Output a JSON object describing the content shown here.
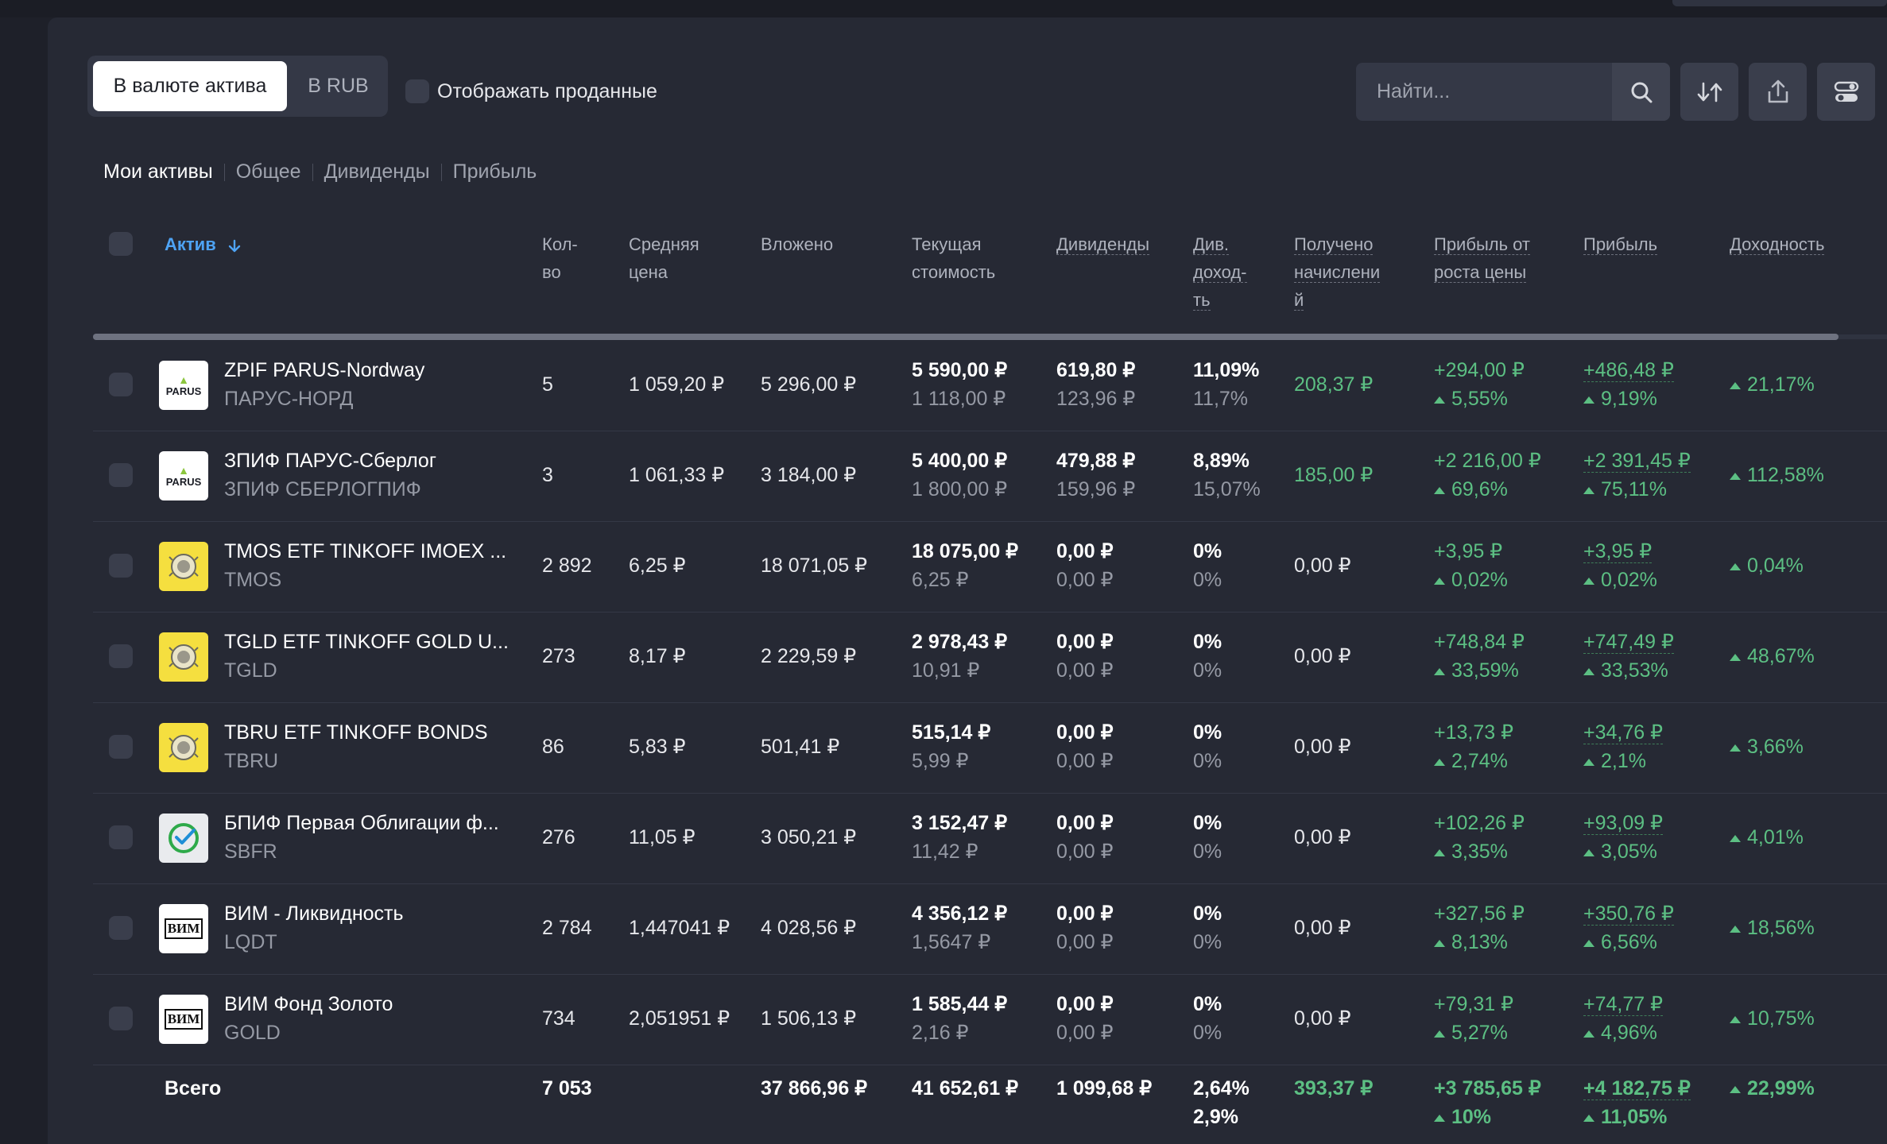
{
  "toolbar": {
    "seg_asset_currency": "В валюте актива",
    "seg_rub": "В RUB",
    "show_sold": "Отображать проданные",
    "search_placeholder": "Найти..."
  },
  "view_tabs": [
    "Мои активы",
    "Общее",
    "Дивиденды",
    "Прибыль"
  ],
  "columns": {
    "asset": "Актив",
    "qty": [
      "Кол-",
      "во"
    ],
    "avg_price": [
      "Средняя",
      "цена"
    ],
    "invested": "Вложено",
    "current": [
      "Текущая",
      "стоимость"
    ],
    "dividends": "Дивиденды",
    "div_yield": [
      "Див.",
      "доход-",
      "ть"
    ],
    "received": [
      "Получено",
      "начислени",
      "й"
    ],
    "price_profit": [
      "Прибыль от",
      "роста цены"
    ],
    "profit": "Прибыль",
    "return": "Доходность"
  },
  "rows": [
    {
      "logo": "parus",
      "name": "ZPIF PARUS-Nordway",
      "ticker": "ПАРУС-НОРД",
      "qty": "5",
      "avg": "1 059,20 ₽",
      "invested": "5 296,00 ₽",
      "current": "5 590,00 ₽",
      "current_unit": "1 118,00 ₽",
      "div": "619,80 ₽",
      "div_unit": "123,96 ₽",
      "yield": "11,09%",
      "yield2": "11,7%",
      "received": "208,37 ₽",
      "received_green": true,
      "pp": "+294,00 ₽",
      "pp_pct": "5,55%",
      "profit": "+486,48 ₽",
      "profit_pct": "9,19%",
      "ret": "21,17%"
    },
    {
      "logo": "parus",
      "name": "ЗПИФ ПАРУС-Сберлог",
      "ticker": "ЗПИФ СБЕРЛОГПИФ",
      "qty": "3",
      "avg": "1 061,33 ₽",
      "invested": "3 184,00 ₽",
      "current": "5 400,00 ₽",
      "current_unit": "1 800,00 ₽",
      "div": "479,88 ₽",
      "div_unit": "159,96 ₽",
      "yield": "8,89%",
      "yield2": "15,07%",
      "received": "185,00 ₽",
      "received_green": true,
      "pp": "+2 216,00 ₽",
      "pp_pct": "69,6%",
      "profit": "+2 391,45 ₽",
      "profit_pct": "75,11%",
      "ret": "112,58%"
    },
    {
      "logo": "tinkoff",
      "name": "TMOS ETF TINKOFF IMOEX ...",
      "ticker": "TMOS",
      "qty": "2 892",
      "avg": "6,25 ₽",
      "invested": "18 071,05 ₽",
      "current": "18 075,00 ₽",
      "current_unit": "6,25 ₽",
      "div": "0,00 ₽",
      "div_unit": "0,00 ₽",
      "yield": "0%",
      "yield2": "0%",
      "received": "0,00 ₽",
      "received_green": false,
      "pp": "+3,95 ₽",
      "pp_pct": "0,02%",
      "profit": "+3,95 ₽",
      "profit_pct": "0,02%",
      "ret": "0,04%"
    },
    {
      "logo": "tinkoff",
      "name": "TGLD ETF TINKOFF GOLD U...",
      "ticker": "TGLD",
      "qty": "273",
      "avg": "8,17 ₽",
      "invested": "2 229,59 ₽",
      "current": "2 978,43 ₽",
      "current_unit": "10,91 ₽",
      "div": "0,00 ₽",
      "div_unit": "0,00 ₽",
      "yield": "0%",
      "yield2": "0%",
      "received": "0,00 ₽",
      "received_green": false,
      "pp": "+748,84 ₽",
      "pp_pct": "33,59%",
      "profit": "+747,49 ₽",
      "profit_pct": "33,53%",
      "ret": "48,67%"
    },
    {
      "logo": "tinkoff",
      "name": "TBRU ETF TINKOFF BONDS",
      "ticker": "TBRU",
      "qty": "86",
      "avg": "5,83 ₽",
      "invested": "501,41 ₽",
      "current": "515,14 ₽",
      "current_unit": "5,99 ₽",
      "div": "0,00 ₽",
      "div_unit": "0,00 ₽",
      "yield": "0%",
      "yield2": "0%",
      "received": "0,00 ₽",
      "received_green": false,
      "pp": "+13,73 ₽",
      "pp_pct": "2,74%",
      "profit": "+34,76 ₽",
      "profit_pct": "2,1%",
      "ret": "3,66%"
    },
    {
      "logo": "sber",
      "name": "БПИФ Первая Облигации ф...",
      "ticker": "SBFR",
      "qty": "276",
      "avg": "11,05 ₽",
      "invested": "3 050,21 ₽",
      "current": "3 152,47 ₽",
      "current_unit": "11,42 ₽",
      "div": "0,00 ₽",
      "div_unit": "0,00 ₽",
      "yield": "0%",
      "yield2": "0%",
      "received": "0,00 ₽",
      "received_green": false,
      "pp": "+102,26 ₽",
      "pp_pct": "3,35%",
      "profit": "+93,09 ₽",
      "profit_pct": "3,05%",
      "ret": "4,01%"
    },
    {
      "logo": "vim",
      "name": "ВИМ - Ликвидность",
      "ticker": "LQDT",
      "qty": "2 784",
      "avg": "1,447041 ₽",
      "invested": "4 028,56 ₽",
      "current": "4 356,12 ₽",
      "current_unit": "1,5647 ₽",
      "div": "0,00 ₽",
      "div_unit": "0,00 ₽",
      "yield": "0%",
      "yield2": "0%",
      "received": "0,00 ₽",
      "received_green": false,
      "pp": "+327,56 ₽",
      "pp_pct": "8,13%",
      "profit": "+350,76 ₽",
      "profit_pct": "6,56%",
      "ret": "18,56%"
    },
    {
      "logo": "vim",
      "name": "ВИМ Фонд Золото",
      "ticker": "GOLD",
      "qty": "734",
      "avg": "2,051951 ₽",
      "invested": "1 506,13 ₽",
      "current": "1 585,44 ₽",
      "current_unit": "2,16 ₽",
      "div": "0,00 ₽",
      "div_unit": "0,00 ₽",
      "yield": "0%",
      "yield2": "0%",
      "received": "0,00 ₽",
      "received_green": false,
      "pp": "+79,31 ₽",
      "pp_pct": "5,27%",
      "profit": "+74,77 ₽",
      "profit_pct": "4,96%",
      "ret": "10,75%"
    }
  ],
  "logo_text": {
    "parus": "PARUS",
    "vim": "ВИМ"
  },
  "total": {
    "label": "Всего",
    "qty": "7 053",
    "invested": "37 866,96 ₽",
    "current": "41 652,61 ₽",
    "div": "1 099,68 ₽",
    "yield": "2,64%",
    "yield2": "2,9%",
    "received": "393,37 ₽",
    "pp": "+3 785,65 ₽",
    "pp_pct": "10%",
    "profit": "+4 182,75 ₽",
    "profit_pct": "11,05%",
    "ret": "22,99%"
  },
  "colors": {
    "accent": "#4ea3f4",
    "positive": "#5cbf83",
    "panel": "#262934",
    "background": "#1e2029"
  },
  "icons": {
    "search": "search-icon",
    "sort": "sort-arrows-icon",
    "export": "export-icon",
    "settings": "toggle-settings-icon"
  }
}
